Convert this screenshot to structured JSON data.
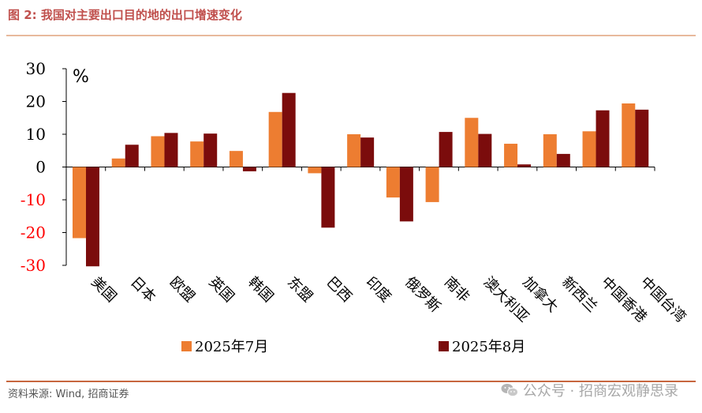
{
  "figure": {
    "title": "图 2:  我国对主要出口目的地的出口增速变化",
    "source": "资料来源:  Wind,  招商证券",
    "watermark": "公众号 · 招商宏观静思录"
  },
  "colors": {
    "series1": "#ed7d31",
    "series2": "#7b0c0c",
    "title": "#c0504d",
    "negative_tick": "#ff0000"
  },
  "chart_data": {
    "type": "bar",
    "unit_label": "%",
    "ylim": [
      -30,
      30
    ],
    "yticks": [
      30,
      20,
      10,
      0,
      -10,
      -20,
      -30
    ],
    "categories": [
      "美国",
      "日本",
      "欧盟",
      "英国",
      "韩国",
      "东盟",
      "巴西",
      "印度",
      "俄罗斯",
      "南非",
      "澳大利亚",
      "加拿大",
      "新西兰",
      "中国香港",
      "中国台湾"
    ],
    "series": [
      {
        "name": "2025年7月",
        "values": [
          -21.7,
          2.6,
          9.4,
          7.8,
          4.9,
          16.8,
          -1.9,
          10.0,
          -9.3,
          -10.7,
          15.0,
          7.1,
          10.0,
          10.9,
          19.4
        ]
      },
      {
        "name": "2025年8月",
        "values": [
          -30.3,
          6.8,
          10.4,
          10.2,
          -1.3,
          22.6,
          -18.5,
          9.0,
          -16.6,
          10.7,
          10.1,
          0.8,
          4.0,
          17.3,
          17.5
        ]
      }
    ],
    "legend": "bottom"
  }
}
